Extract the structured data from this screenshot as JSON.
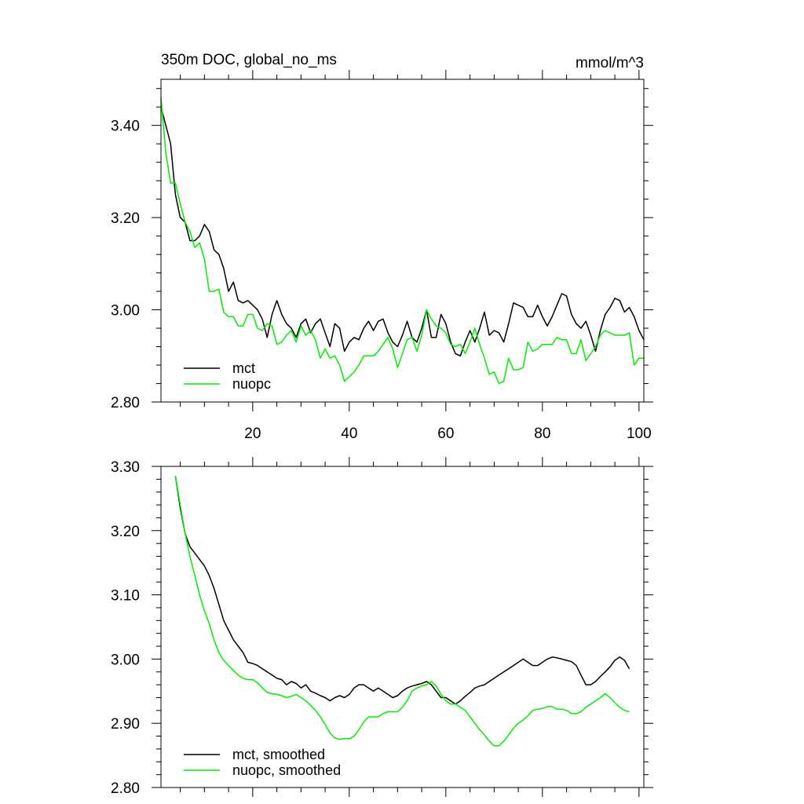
{
  "chart_data": [
    {
      "type": "line",
      "title": "350m DOC, global_no_ms",
      "units_label": "mmol/m^3",
      "xlim": [
        1,
        101
      ],
      "ylim": [
        2.8,
        3.5
      ],
      "x_ticks": [
        20,
        40,
        60,
        80,
        100
      ],
      "x_tick_labels": [
        "20",
        "40",
        "60",
        "80",
        "100"
      ],
      "y_ticks": [
        2.8,
        3.0,
        3.2,
        3.4
      ],
      "y_tick_labels": [
        "2.80",
        "3.00",
        "3.20",
        "3.40"
      ],
      "legend_position": "bottom-left",
      "series": [
        {
          "name": "mct",
          "color": "#000000",
          "x_start": 1,
          "values": [
            3.44,
            3.4,
            3.36,
            3.25,
            3.2,
            3.19,
            3.15,
            3.15,
            3.16,
            3.185,
            3.17,
            3.13,
            3.12,
            3.09,
            3.04,
            3.06,
            3.02,
            3.015,
            3.02,
            3.01,
            3.0,
            2.98,
            2.94,
            2.99,
            3.02,
            2.99,
            2.97,
            2.96,
            2.94,
            2.97,
            2.98,
            2.95,
            2.97,
            2.98,
            2.95,
            2.92,
            2.97,
            2.96,
            2.91,
            2.93,
            2.94,
            2.935,
            2.96,
            2.975,
            2.955,
            2.975,
            2.98,
            2.95,
            2.93,
            2.92,
            2.945,
            2.975,
            2.94,
            2.93,
            2.96,
            3.0,
            2.94,
            2.94,
            2.99,
            2.97,
            2.93,
            2.905,
            2.9,
            2.93,
            2.955,
            2.93,
            2.96,
            2.995,
            2.945,
            2.955,
            2.95,
            2.93,
            2.97,
            3.015,
            3.01,
            3.005,
            2.985,
            2.985,
            3.01,
            2.985,
            2.965,
            2.985,
            3.01,
            3.035,
            3.03,
            2.99,
            2.97,
            2.96,
            2.975,
            2.945,
            2.91,
            2.955,
            2.99,
            3.005,
            3.025,
            3.02,
            2.995,
            3.005,
            2.985,
            2.955,
            2.935
          ]
        },
        {
          "name": "nuopc",
          "color": "#00ee00",
          "x_start": 1,
          "values": [
            3.46,
            3.34,
            3.275,
            3.275,
            3.23,
            3.19,
            3.17,
            3.135,
            3.145,
            3.11,
            3.04,
            3.04,
            3.045,
            2.995,
            2.985,
            2.985,
            2.965,
            2.965,
            2.99,
            2.99,
            2.96,
            2.955,
            2.97,
            2.965,
            2.925,
            2.93,
            2.945,
            2.955,
            2.93,
            2.965,
            2.945,
            2.955,
            2.935,
            2.895,
            2.915,
            2.895,
            2.9,
            2.88,
            2.845,
            2.855,
            2.865,
            2.88,
            2.9,
            2.9,
            2.9,
            2.91,
            2.925,
            2.94,
            2.915,
            2.875,
            2.905,
            2.935,
            2.94,
            2.91,
            2.945,
            3.0,
            2.98,
            2.965,
            2.96,
            2.95,
            2.925,
            2.92,
            2.925,
            2.905,
            2.93,
            2.96,
            2.925,
            2.895,
            2.86,
            2.865,
            2.84,
            2.845,
            2.895,
            2.87,
            2.87,
            2.875,
            2.93,
            2.91,
            2.915,
            2.925,
            2.925,
            2.925,
            2.94,
            2.935,
            2.935,
            2.905,
            2.905,
            2.935,
            2.89,
            2.905,
            2.92,
            2.945,
            2.955,
            2.95,
            2.945,
            2.945,
            2.945,
            2.95,
            2.88,
            2.895,
            2.895
          ]
        }
      ]
    },
    {
      "type": "line",
      "title": "",
      "xlim": [
        1,
        101
      ],
      "ylim": [
        2.8,
        3.3
      ],
      "y_ticks": [
        2.8,
        2.9,
        3.0,
        3.1,
        3.2,
        3.3
      ],
      "y_tick_labels": [
        "2.80",
        "2.90",
        "3.00",
        "3.10",
        "3.20",
        "3.30"
      ],
      "legend_position": "bottom-left",
      "series": [
        {
          "name": "mct, smoothed",
          "color": "#000000",
          "x_start": 4,
          "values": [
            3.285,
            3.235,
            3.195,
            3.175,
            3.165,
            3.155,
            3.145,
            3.13,
            3.11,
            3.085,
            3.06,
            3.045,
            3.03,
            3.02,
            3.01,
            2.995,
            2.993,
            2.99,
            2.985,
            2.98,
            2.975,
            2.97,
            2.968,
            2.96,
            2.965,
            2.962,
            2.955,
            2.96,
            2.95,
            2.947,
            2.943,
            2.94,
            2.935,
            2.94,
            2.943,
            2.94,
            2.945,
            2.955,
            2.96,
            2.96,
            2.955,
            2.95,
            2.955,
            2.95,
            2.945,
            2.94,
            2.943,
            2.95,
            2.955,
            2.958,
            2.96,
            2.962,
            2.965,
            2.96,
            2.95,
            2.94,
            2.94,
            2.935,
            2.93,
            2.935,
            2.942,
            2.948,
            2.955,
            2.958,
            2.96,
            2.965,
            2.97,
            2.975,
            2.98,
            2.985,
            2.99,
            2.995,
            3.0,
            2.995,
            2.99,
            2.99,
            2.995,
            3.0,
            3.003,
            3.002,
            3.0,
            2.998,
            2.996,
            2.99,
            2.975,
            2.96,
            2.96,
            2.965,
            2.973,
            2.98,
            2.988,
            2.998,
            3.003,
            2.998,
            2.985
          ]
        },
        {
          "name": "nuopc, smoothed",
          "color": "#00ee00",
          "x_start": 4,
          "values": [
            3.285,
            3.24,
            3.195,
            3.16,
            3.13,
            3.1,
            3.075,
            3.055,
            3.03,
            3.01,
            2.998,
            2.99,
            2.982,
            2.975,
            2.97,
            2.968,
            2.968,
            2.963,
            2.955,
            2.948,
            2.946,
            2.945,
            2.943,
            2.94,
            2.942,
            2.945,
            2.94,
            2.935,
            2.928,
            2.92,
            2.91,
            2.898,
            2.885,
            2.877,
            2.875,
            2.876,
            2.876,
            2.88,
            2.89,
            2.902,
            2.91,
            2.91,
            2.91,
            2.915,
            2.918,
            2.918,
            2.918,
            2.925,
            2.935,
            2.95,
            2.955,
            2.958,
            2.96,
            2.965,
            2.958,
            2.945,
            2.935,
            2.93,
            2.93,
            2.925,
            2.92,
            2.91,
            2.9,
            2.89,
            2.882,
            2.872,
            2.865,
            2.865,
            2.872,
            2.882,
            2.892,
            2.9,
            2.905,
            2.912,
            2.92,
            2.922,
            2.923,
            2.926,
            2.926,
            2.922,
            2.922,
            2.92,
            2.915,
            2.915,
            2.918,
            2.925,
            2.93,
            2.935,
            2.94,
            2.946,
            2.94,
            2.932,
            2.925,
            2.92,
            2.918
          ]
        }
      ]
    }
  ]
}
